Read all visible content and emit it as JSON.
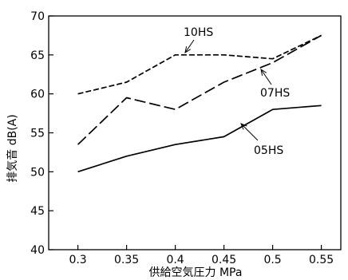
{
  "chart_data": {
    "type": "line",
    "x": [
      0.3,
      0.35,
      0.4,
      0.45,
      0.5,
      0.55
    ],
    "xticks": [
      "0.3",
      "0.35",
      "0.4",
      "0.45",
      "0.5",
      "0.55"
    ],
    "yticks": [
      "40",
      "45",
      "50",
      "55",
      "60",
      "65",
      "70"
    ],
    "xlim": [
      0.27,
      0.57
    ],
    "ylim": [
      40,
      70
    ],
    "xlabel": "供給空気圧力 MPa",
    "ylabel": "排気音 dB(A)",
    "grid": false,
    "series": [
      {
        "name": "10HS",
        "style": "short-dash",
        "color": "#000000",
        "values": [
          60,
          61.5,
          65,
          65,
          64.5,
          67.5
        ]
      },
      {
        "name": "07HS",
        "style": "long-dash",
        "color": "#000000",
        "values": [
          53.5,
          59.5,
          58,
          61.5,
          64,
          67.5
        ]
      },
      {
        "name": "05HS",
        "style": "solid",
        "color": "#000000",
        "values": [
          50,
          52,
          53.5,
          54.5,
          58,
          58.5
        ]
      }
    ]
  }
}
